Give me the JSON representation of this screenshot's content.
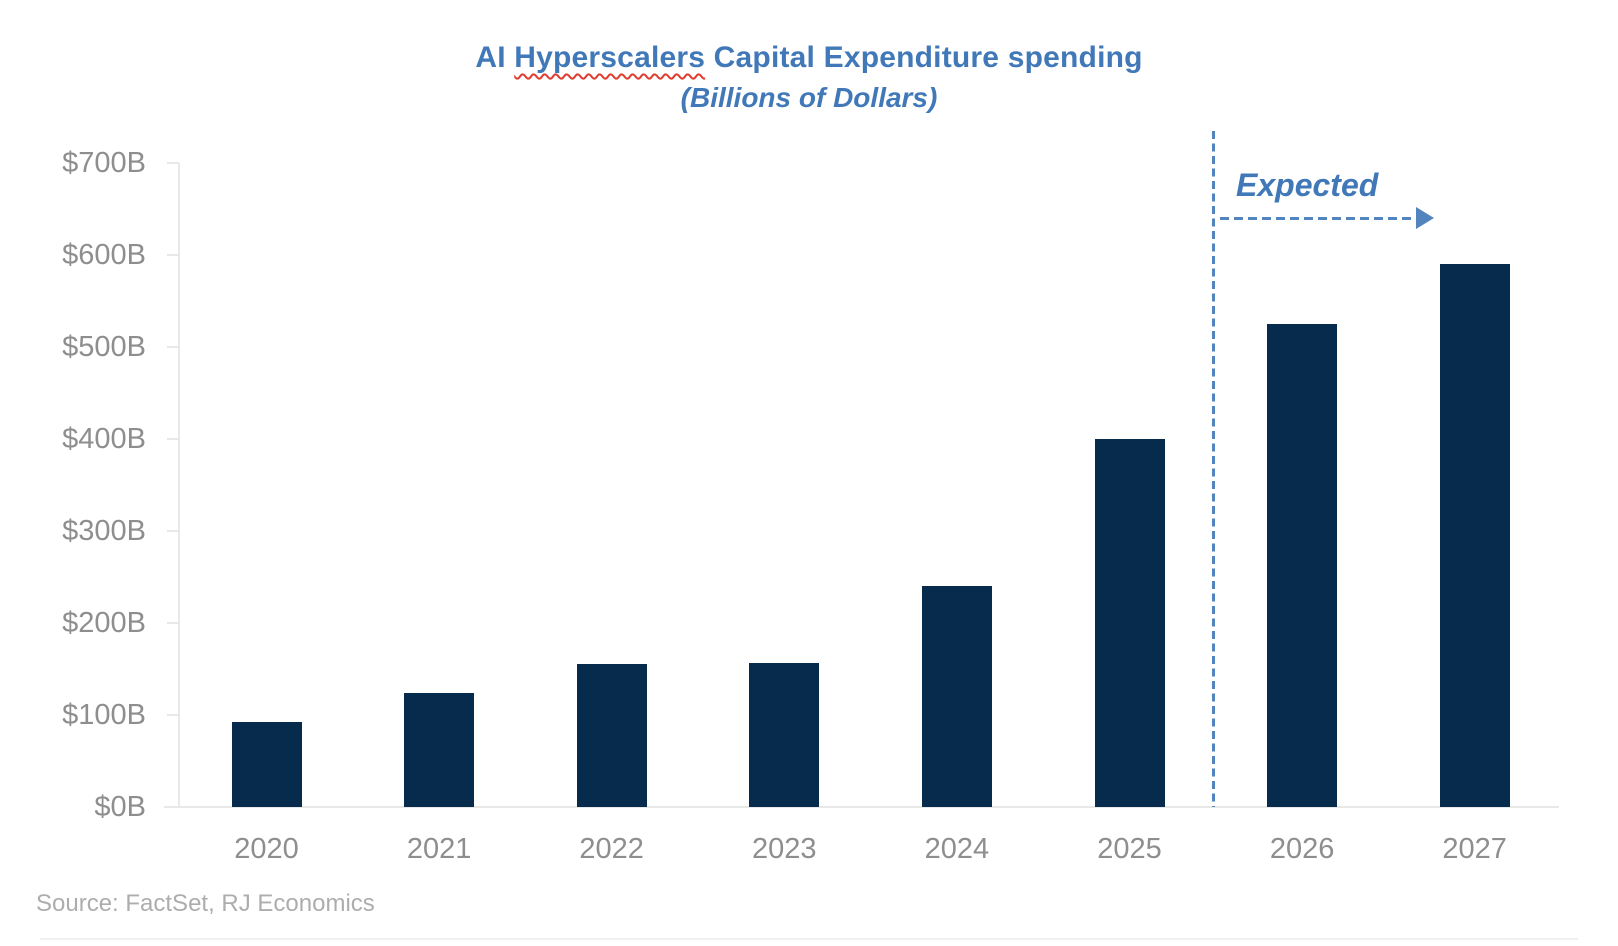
{
  "title": {
    "prefix": "AI ",
    "underlined_word": "Hyperscalers",
    "suffix": " Capital Expenditure spending",
    "subtitle": "(Billions of Dollars)"
  },
  "annotation": {
    "expected_label": "Expected"
  },
  "source_note": "Source: FactSet, RJ Economics",
  "colors": {
    "bar_navy": "#062B4C",
    "title_blue": "#4078B8",
    "accent_blue": "#5284BE",
    "axis_text": "#8E8E8E",
    "source_text": "#ADADAD",
    "axis_line": "#E8E8E8",
    "squiggle_red": "#E03C31"
  },
  "chart_data": {
    "type": "bar",
    "title": "AI Hyperscalers Capital Expenditure spending",
    "subtitle": "(Billions of Dollars)",
    "xlabel": "",
    "ylabel": "",
    "categories": [
      "2020",
      "2021",
      "2022",
      "2023",
      "2024",
      "2025",
      "2026",
      "2027"
    ],
    "values": [
      92,
      124,
      155,
      156,
      240,
      400,
      525,
      590
    ],
    "ylim": [
      0,
      700
    ],
    "y_ticks": [
      {
        "value": 0,
        "label": "$0B"
      },
      {
        "value": 100,
        "label": "$100B"
      },
      {
        "value": 200,
        "label": "$200B"
      },
      {
        "value": 300,
        "label": "$300B"
      },
      {
        "value": 400,
        "label": "$400B"
      },
      {
        "value": 500,
        "label": "$500B"
      },
      {
        "value": 600,
        "label": "$600B"
      },
      {
        "value": 700,
        "label": "$700B"
      },
      {
        "value": 800,
        "label": ""
      }
    ],
    "grid": false,
    "legend_position": "none",
    "expected_categories": [
      "2026",
      "2027"
    ],
    "expected_annotation": "Expected"
  }
}
